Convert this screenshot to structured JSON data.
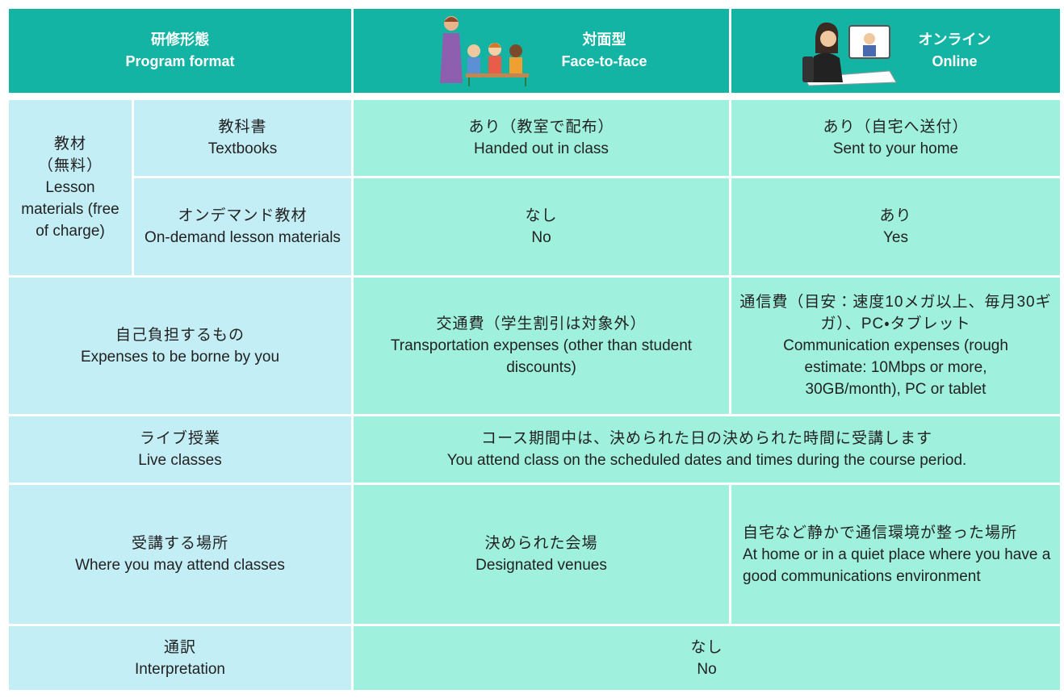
{
  "header": {
    "format": {
      "ja": "研修形態",
      "en": "Program format"
    },
    "face_to_face": {
      "ja": "対面型",
      "en": "Face-to-face"
    },
    "online": {
      "ja": "オンライン",
      "en": "Online"
    }
  },
  "rows": {
    "materials": {
      "ja": [
        "教材",
        "（無料）"
      ],
      "en": "Lesson materials (free of charge)"
    },
    "textbooks": {
      "label": {
        "ja": "教科書",
        "en": "Textbooks"
      },
      "face_to_face": {
        "ja": "あり（教室で配布）",
        "en": "Handed out in class"
      },
      "online": {
        "ja": "あり（自宅へ送付）",
        "en": "Sent to your home"
      }
    },
    "on_demand": {
      "label": {
        "ja": "オンデマンド教材",
        "en": "On-demand lesson materials"
      },
      "face_to_face": {
        "ja": "なし",
        "en": "No"
      },
      "online": {
        "ja": "あり",
        "en": "Yes"
      }
    },
    "expenses": {
      "label": {
        "ja": "自己負担するもの",
        "en": "Expenses to be borne by you"
      },
      "face_to_face": {
        "ja": "交通費（学生割引は対象外）",
        "en": "Transportation expenses (other than student discounts)"
      },
      "online": {
        "ja": "通信費（目安：速度10メガ以上、毎月30ギガ）、PC・タブレット",
        "en": "Communication expenses (rough estimate: 10Mbps or more, 30GB/month), PC or tablet"
      }
    },
    "live": {
      "label": {
        "ja": "ライブ授業",
        "en": "Live classes"
      },
      "both": {
        "ja": "コース期間中は、決められた日の決められた時間に受講します",
        "en": "You attend class on the scheduled dates and times during the course period."
      }
    },
    "place": {
      "label": {
        "ja": "受講する場所",
        "en": "Where you may attend classes"
      },
      "face_to_face": {
        "ja": "決められた会場",
        "en": "Designated venues"
      },
      "online": {
        "ja": "自宅など静かで通信環境が整った場所",
        "en": "At home or in a quiet place where you have a good communications environment"
      }
    },
    "interpretation": {
      "label": {
        "ja": "通訳",
        "en": "Interpretation"
      },
      "both": {
        "ja": "なし",
        "en": "No"
      }
    }
  }
}
